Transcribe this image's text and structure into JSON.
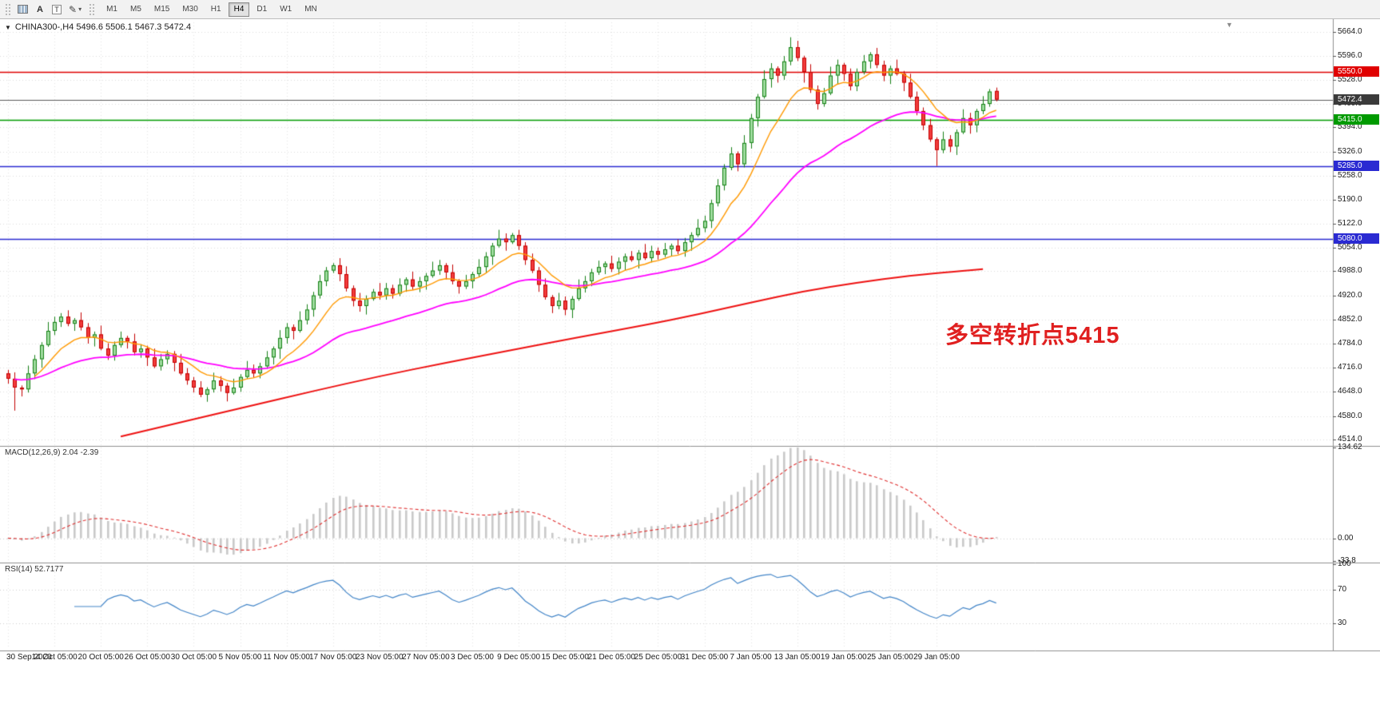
{
  "toolbar": {
    "a_label": "A",
    "t_label": "T",
    "icons": {
      "pencil": "✎",
      "caret": "▾"
    },
    "timeframes": [
      {
        "label": "M1",
        "active": false
      },
      {
        "label": "M5",
        "active": false
      },
      {
        "label": "M15",
        "active": false
      },
      {
        "label": "M30",
        "active": false
      },
      {
        "label": "H1",
        "active": false
      },
      {
        "label": "H4",
        "active": true
      },
      {
        "label": "D1",
        "active": false
      },
      {
        "label": "W1",
        "active": false
      },
      {
        "label": "MN",
        "active": false
      }
    ]
  },
  "chart_ui": {
    "title": "CHINA300-,H4 5496.6 5506.1 5467.3 5472.4",
    "collapse_icon": "▼",
    "shift_marker_icon": "▼",
    "macd_label": "MACD(12,26,9) 2.04 -2.39",
    "rsi_label": "RSI(14) 52.7177",
    "annotation_text": "多空转折点5415",
    "annotation_color": "#e02020",
    "current_price": {
      "label": "5472.4",
      "bg": "#3a3a3a"
    },
    "level_badges": [
      {
        "label": "5550.0",
        "color": "#e00000"
      },
      {
        "label": "5415.0",
        "color": "#009a00"
      },
      {
        "label": "5285.0",
        "color": "#2a2ad2"
      },
      {
        "label": "5080.0",
        "color": "#2a2ad2"
      }
    ]
  },
  "chart_data": {
    "type": "candlestick",
    "symbol": "CHINA300-",
    "timeframe": "H4",
    "ohlc_display": {
      "open": 5496.6,
      "high": 5506.1,
      "low": 5467.3,
      "close": 5472.4
    },
    "ylim": [
      4500,
      5690
    ],
    "grid": true,
    "horizontal_levels": [
      5550.0,
      5415.0,
      5285.0,
      5080.0
    ],
    "price_axis_ticks": [
      "5664.0",
      "5596.0",
      "5528.0",
      "5460.0",
      "5394.0",
      "5326.0",
      "5258.0",
      "5190.0",
      "5122.0",
      "5054.0",
      "4988.0",
      "4920.0",
      "4852.0",
      "4784.0",
      "4716.0",
      "4648.0",
      "4580.0",
      "4514.0"
    ],
    "x_labels": [
      "30 Sep 2020",
      "14 Oct 05:00",
      "20 Oct 05:00",
      "26 Oct 05:00",
      "30 Oct 05:00",
      "5 Nov 05:00",
      "11 Nov 05:00",
      "17 Nov 05:00",
      "23 Nov 05:00",
      "27 Nov 05:00",
      "3 Dec 05:00",
      "9 Dec 05:00",
      "15 Dec 05:00",
      "21 Dec 05:00",
      "25 Dec 05:00",
      "31 Dec 05:00",
      "7 Jan 05:00",
      "13 Jan 05:00",
      "19 Jan 05:00",
      "25 Jan 05:00",
      "29 Jan 05:00"
    ],
    "candles": [
      [
        4700,
        4710,
        4671,
        4685
      ],
      [
        4685,
        4703,
        4595,
        4660
      ],
      [
        4660,
        4666,
        4635,
        4655
      ],
      [
        4655,
        4722,
        4646,
        4700
      ],
      [
        4700,
        4752,
        4684,
        4740
      ],
      [
        4740,
        4788,
        4716,
        4780
      ],
      [
        4780,
        4845,
        4775,
        4820
      ],
      [
        4820,
        4860,
        4808,
        4845
      ],
      [
        4845,
        4870,
        4831,
        4860
      ],
      [
        4860,
        4878,
        4833,
        4840
      ],
      [
        4840,
        4856,
        4820,
        4850
      ],
      [
        4850,
        4872,
        4821,
        4830
      ],
      [
        4830,
        4842,
        4784,
        4800
      ],
      [
        4800,
        4818,
        4776,
        4810
      ],
      [
        4810,
        4835,
        4765,
        4770
      ],
      [
        4770,
        4785,
        4738,
        4750
      ],
      [
        4750,
        4790,
        4736,
        4780
      ],
      [
        4780,
        4818,
        4773,
        4800
      ],
      [
        4800,
        4806,
        4770,
        4790
      ],
      [
        4790,
        4812,
        4751,
        4760
      ],
      [
        4760,
        4782,
        4744,
        4770
      ],
      [
        4770,
        4778,
        4721,
        4745
      ],
      [
        4745,
        4770,
        4715,
        4720
      ],
      [
        4720,
        4755,
        4708,
        4740
      ],
      [
        4740,
        4765,
        4726,
        4755
      ],
      [
        4755,
        4763,
        4706,
        4730
      ],
      [
        4730,
        4755,
        4695,
        4700
      ],
      [
        4700,
        4715,
        4668,
        4680
      ],
      [
        4680,
        4690,
        4646,
        4660
      ],
      [
        4660,
        4678,
        4633,
        4640
      ],
      [
        4640,
        4661,
        4620,
        4655
      ],
      [
        4655,
        4702,
        4646,
        4680
      ],
      [
        4680,
        4692,
        4649,
        4665
      ],
      [
        4665,
        4673,
        4621,
        4645
      ],
      [
        4645,
        4685,
        4640,
        4660
      ],
      [
        4660,
        4698,
        4648,
        4690
      ],
      [
        4690,
        4735,
        4685,
        4710
      ],
      [
        4710,
        4725,
        4688,
        4700
      ],
      [
        4700,
        4730,
        4686,
        4720
      ],
      [
        4720,
        4763,
        4713,
        4745
      ],
      [
        4745,
        4776,
        4725,
        4770
      ],
      [
        4770,
        4822,
        4741,
        4800
      ],
      [
        4800,
        4842,
        4784,
        4830
      ],
      [
        4830,
        4838,
        4796,
        4820
      ],
      [
        4820,
        4875,
        4815,
        4850
      ],
      [
        4850,
        4895,
        4838,
        4880
      ],
      [
        4880,
        4930,
        4860,
        4920
      ],
      [
        4920,
        4978,
        4911,
        4960
      ],
      [
        4960,
        5000,
        4946,
        4990
      ],
      [
        4990,
        5011,
        4983,
        5005
      ],
      [
        5005,
        5025,
        4960,
        4980
      ],
      [
        4980,
        5002,
        4931,
        4940
      ],
      [
        4940,
        4948,
        4889,
        4905
      ],
      [
        4905,
        4927,
        4874,
        4890
      ],
      [
        4890,
        4920,
        4866,
        4910
      ],
      [
        4910,
        4938,
        4905,
        4930
      ],
      [
        4930,
        4955,
        4908,
        4920
      ],
      [
        4920,
        4955,
        4908,
        4940
      ],
      [
        4940,
        4950,
        4911,
        4925
      ],
      [
        4925,
        4968,
        4918,
        4950
      ],
      [
        4950,
        4971,
        4930,
        4965
      ],
      [
        4965,
        4987,
        4936,
        4945
      ],
      [
        4945,
        4972,
        4929,
        4960
      ],
      [
        4960,
        4983,
        4936,
        4975
      ],
      [
        4975,
        5015,
        4970,
        4990
      ],
      [
        4990,
        5020,
        4978,
        5005
      ],
      [
        5005,
        5011,
        4965,
        4985
      ],
      [
        4985,
        5007,
        4951,
        4960
      ],
      [
        4960,
        4966,
        4925,
        4945
      ],
      [
        4945,
        4978,
        4938,
        4960
      ],
      [
        4960,
        4986,
        4940,
        4980
      ],
      [
        4980,
        5022,
        4971,
        5000
      ],
      [
        5000,
        5042,
        4984,
        5030
      ],
      [
        5030,
        5068,
        5006,
        5060
      ],
      [
        5060,
        5105,
        5055,
        5080
      ],
      [
        5080,
        5095,
        5046,
        5070
      ],
      [
        5070,
        5096,
        5065,
        5090
      ],
      [
        5090,
        5105,
        5048,
        5060
      ],
      [
        5060,
        5070,
        5006,
        5020
      ],
      [
        5020,
        5038,
        4983,
        4990
      ],
      [
        4990,
        5000,
        4930,
        4950
      ],
      [
        4950,
        4968,
        4908,
        4915
      ],
      [
        4915,
        4921,
        4870,
        4890
      ],
      [
        4890,
        4927,
        4881,
        4905
      ],
      [
        4905,
        4917,
        4864,
        4880
      ],
      [
        4880,
        4918,
        4856,
        4910
      ],
      [
        4910,
        4965,
        4905,
        4940
      ],
      [
        4940,
        4975,
        4928,
        4960
      ],
      [
        4960,
        4995,
        4946,
        4985
      ],
      [
        4985,
        5018,
        4978,
        5000
      ],
      [
        5000,
        5016,
        4980,
        5010
      ],
      [
        5010,
        5032,
        4986,
        4995
      ],
      [
        4995,
        5027,
        4979,
        5015
      ],
      [
        5015,
        5038,
        4991,
        5030
      ],
      [
        5030,
        5045,
        5015,
        5020
      ],
      [
        5020,
        5048,
        4996,
        5040
      ],
      [
        5040,
        5065,
        5020,
        5025
      ],
      [
        5025,
        5060,
        5013,
        5045
      ],
      [
        5045,
        5055,
        5021,
        5035
      ],
      [
        5035,
        5068,
        5028,
        5050
      ],
      [
        5050,
        5066,
        5030,
        5060
      ],
      [
        5060,
        5078,
        5036,
        5045
      ],
      [
        5045,
        5082,
        5029,
        5070
      ],
      [
        5070,
        5098,
        5046,
        5090
      ],
      [
        5090,
        5135,
        5085,
        5110
      ],
      [
        5110,
        5145,
        5098,
        5130
      ],
      [
        5130,
        5190,
        5110,
        5180
      ],
      [
        5180,
        5248,
        5171,
        5230
      ],
      [
        5230,
        5290,
        5216,
        5280
      ],
      [
        5280,
        5338,
        5273,
        5320
      ],
      [
        5320,
        5326,
        5270,
        5290
      ],
      [
        5290,
        5372,
        5281,
        5350
      ],
      [
        5350,
        5432,
        5334,
        5420
      ],
      [
        5420,
        5488,
        5396,
        5480
      ],
      [
        5480,
        5555,
        5475,
        5530
      ],
      [
        5530,
        5575,
        5506,
        5560
      ],
      [
        5560,
        5566,
        5520,
        5540
      ],
      [
        5540,
        5595,
        5528,
        5580
      ],
      [
        5580,
        5648,
        5569,
        5620
      ],
      [
        5620,
        5638,
        5581,
        5590
      ],
      [
        5590,
        5596,
        5520,
        5550
      ],
      [
        5550,
        5572,
        5491,
        5500
      ],
      [
        5500,
        5512,
        5444,
        5460
      ],
      [
        5460,
        5505,
        5452,
        5490
      ],
      [
        5490,
        5565,
        5485,
        5540
      ],
      [
        5540,
        5585,
        5516,
        5570
      ],
      [
        5570,
        5576,
        5525,
        5545
      ],
      [
        5545,
        5560,
        5498,
        5510
      ],
      [
        5510,
        5560,
        5496,
        5550
      ],
      [
        5550,
        5598,
        5543,
        5580
      ],
      [
        5580,
        5606,
        5560,
        5600
      ],
      [
        5600,
        5618,
        5561,
        5570
      ],
      [
        5570,
        5582,
        5524,
        5540
      ],
      [
        5540,
        5568,
        5516,
        5560
      ],
      [
        5560,
        5585,
        5540,
        5545
      ],
      [
        5545,
        5553,
        5496,
        5520
      ],
      [
        5520,
        5545,
        5475,
        5480
      ],
      [
        5480,
        5495,
        5428,
        5440
      ],
      [
        5440,
        5450,
        5386,
        5400
      ],
      [
        5400,
        5418,
        5353,
        5360
      ],
      [
        5360,
        5366,
        5285,
        5330
      ],
      [
        5330,
        5382,
        5321,
        5360
      ],
      [
        5360,
        5372,
        5324,
        5340
      ],
      [
        5340,
        5388,
        5316,
        5380
      ],
      [
        5380,
        5445,
        5375,
        5420
      ],
      [
        5420,
        5435,
        5376,
        5400
      ],
      [
        5400,
        5446,
        5380,
        5440
      ],
      [
        5440,
        5482,
        5431,
        5460
      ],
      [
        5460,
        5502,
        5452,
        5495
      ],
      [
        5496.6,
        5506.1,
        5467.3,
        5472.4
      ]
    ],
    "moving_averages": [
      {
        "name": "fast",
        "color": "#ff9900",
        "period": 10
      },
      {
        "name": "medium",
        "color": "#ff00ff",
        "period": 34
      },
      {
        "name": "slow",
        "color": "#ee1111",
        "points": [
          [
            17,
            4522
          ],
          [
            26,
            4562
          ],
          [
            36,
            4606
          ],
          [
            46,
            4650
          ],
          [
            56,
            4692
          ],
          [
            66,
            4730
          ],
          [
            76,
            4766
          ],
          [
            86,
            4802
          ],
          [
            96,
            4836
          ],
          [
            104,
            4866
          ],
          [
            112,
            4900
          ],
          [
            120,
            4932
          ],
          [
            128,
            4956
          ],
          [
            136,
            4976
          ],
          [
            143,
            4988
          ],
          [
            147,
            4994
          ]
        ]
      }
    ],
    "macd": {
      "fast": 12,
      "slow": 26,
      "signal": 9,
      "current_macd": 2.04,
      "current_signal": -2.39,
      "ylim": [
        -33.8,
        134.62
      ],
      "axis_ticks": [
        {
          "label": "134.62",
          "value": 134.62
        },
        {
          "label": "0.00",
          "value": 0
        },
        {
          "label": "-33.8",
          "value": -33.8
        }
      ]
    },
    "rsi": {
      "period": 14,
      "current": 52.7177,
      "levels": [
        70,
        30
      ],
      "ylim": [
        0,
        100
      ],
      "axis_ticks": [
        {
          "label": "100",
          "value": 100
        },
        {
          "label": "70",
          "value": 70
        },
        {
          "label": "30",
          "value": 30
        }
      ]
    }
  }
}
